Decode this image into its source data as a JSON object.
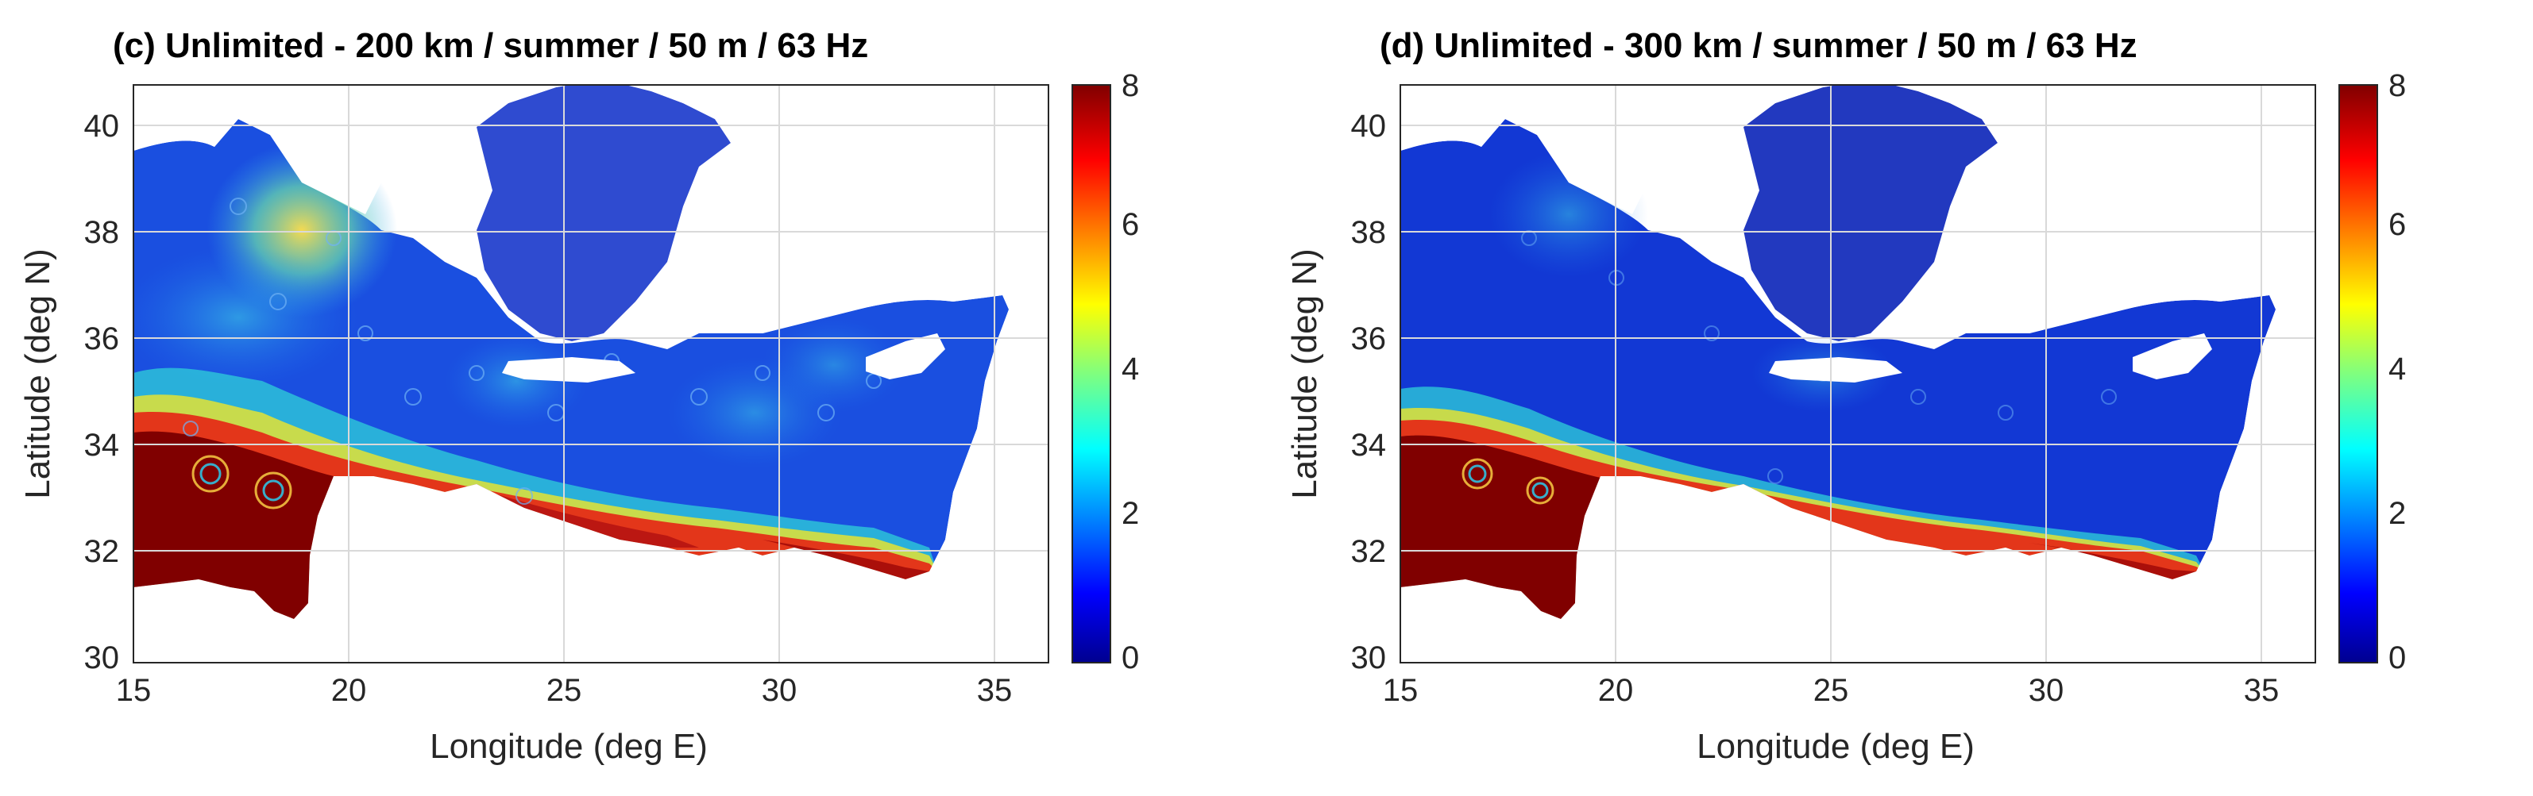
{
  "panels": [
    {
      "id": "c",
      "title": "(c) Unlimited - 200 km / summer / 50 m / 63 Hz",
      "xlabel": "Longitude (deg E)",
      "ylabel": "Latitude (deg N)",
      "xticks": [
        "15",
        "20",
        "25",
        "30",
        "35"
      ],
      "yticks": [
        "30",
        "32",
        "34",
        "36",
        "38",
        "40"
      ],
      "colorbar_ticks": [
        "0",
        "2",
        "4",
        "6",
        "8"
      ]
    },
    {
      "id": "d",
      "title": "(d) Unlimited - 300 km / summer / 50 m / 63 Hz",
      "xlabel": "Longitude (deg E)",
      "ylabel": "Latitude (deg N)",
      "xticks": [
        "15",
        "20",
        "25",
        "30",
        "35"
      ],
      "yticks": [
        "30",
        "32",
        "34",
        "36",
        "38",
        "40"
      ],
      "colorbar_ticks": [
        "0",
        "2",
        "4",
        "6",
        "8"
      ]
    }
  ],
  "colors": {
    "low": "#00008f",
    "mid_blue": "#1e50e6",
    "cyan": "#2fd3e6",
    "yellow": "#f0e628",
    "red": "#e62315",
    "high": "#800000",
    "land": "#ffffff",
    "grid": "#d9d9d9"
  }
}
